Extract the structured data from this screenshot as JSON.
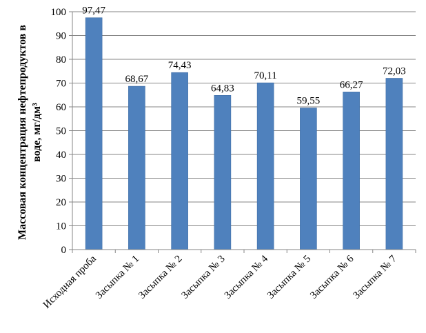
{
  "chart_data": {
    "type": "bar",
    "ylabel_line1": "Массовая концентрация нефтепродуктов в",
    "ylabel_line2": "воде, мг/дм³",
    "categories": [
      "Исходная проба",
      "Засыпка № 1",
      "Засыпка № 2",
      "Засыпка № 3",
      "Засыпка № 4",
      "Засыпка № 5",
      "Засыпка № 6",
      "Засыпка № 7"
    ],
    "values": [
      97.47,
      68.67,
      74.43,
      64.83,
      70.11,
      59.55,
      66.27,
      72.03
    ],
    "data_labels": [
      "97,47",
      "68,67",
      "74,43",
      "64,83",
      "70,11",
      "59,55",
      "66,27",
      "72,03"
    ],
    "yticks": [
      "0",
      "10",
      "20",
      "30",
      "40",
      "50",
      "60",
      "70",
      "80",
      "90",
      "100"
    ],
    "ylim": [
      0,
      100
    ],
    "grid": true,
    "bar_color": "#4f81bd"
  }
}
